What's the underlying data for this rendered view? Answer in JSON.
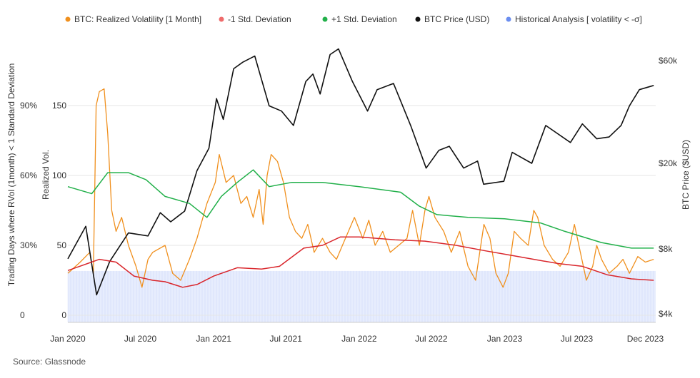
{
  "source": "Source: Glassnode",
  "chart_data": {
    "type": "line",
    "legend": [
      {
        "key": "rvol",
        "label": "BTC: Realized Volatility [1 Month]",
        "color": "#f0901e"
      },
      {
        "key": "minus_sd",
        "label": "-1 Std. Deviation",
        "color": "#ef6b6b"
      },
      {
        "key": "plus_sd",
        "label": "+1 Std. Deviation",
        "color": "#22b04a"
      },
      {
        "key": "price",
        "label": "BTC Price (USD)",
        "color": "#111111"
      },
      {
        "key": "hist",
        "label": "Historical Analysis [ volatility < -σ]",
        "color": "#6b8ef0"
      }
    ],
    "axes": {
      "left_outer": {
        "title": "Trading Days where RVol (1month) < 1 Standard Deviation",
        "ticks": [
          "0",
          "30%",
          "60%",
          "90%"
        ],
        "range": [
          0,
          1
        ]
      },
      "left_inner": {
        "title": "Realized Vol.",
        "ticks": [
          "0",
          "50",
          "100",
          "150"
        ],
        "range": [
          0,
          200
        ]
      },
      "right": {
        "title": "BTC Price ($USD)",
        "ticks": [
          "$4k",
          "$8k",
          "$20k",
          "$60k"
        ],
        "scale": "log",
        "range": [
          3500,
          75000
        ]
      },
      "x": {
        "ticks": [
          "Jan 2020",
          "Jul 2020",
          "Jan 2021",
          "Jul 2021",
          "Jan 2022",
          "Jul 2022",
          "Jan 2023",
          "Jul 2023",
          "Dec 2023"
        ],
        "range": [
          "2020-01-01",
          "2024-01-15"
        ]
      }
    },
    "series": {
      "rvol": [
        [
          "2020-01-01",
          30
        ],
        [
          "2020-02-01",
          38
        ],
        [
          "2020-02-25",
          45
        ],
        [
          "2020-03-05",
          30
        ],
        [
          "2020-03-12",
          150
        ],
        [
          "2020-03-20",
          160
        ],
        [
          "2020-04-01",
          162
        ],
        [
          "2020-04-10",
          130
        ],
        [
          "2020-04-20",
          75
        ],
        [
          "2020-05-01",
          60
        ],
        [
          "2020-05-15",
          70
        ],
        [
          "2020-06-01",
          50
        ],
        [
          "2020-06-20",
          35
        ],
        [
          "2020-07-05",
          20
        ],
        [
          "2020-07-20",
          40
        ],
        [
          "2020-08-01",
          45
        ],
        [
          "2020-09-01",
          50
        ],
        [
          "2020-09-20",
          30
        ],
        [
          "2020-10-10",
          25
        ],
        [
          "2020-11-01",
          40
        ],
        [
          "2020-11-20",
          55
        ],
        [
          "2020-12-15",
          80
        ],
        [
          "2021-01-05",
          95
        ],
        [
          "2021-01-15",
          115
        ],
        [
          "2021-02-01",
          95
        ],
        [
          "2021-02-20",
          100
        ],
        [
          "2021-03-10",
          80
        ],
        [
          "2021-03-25",
          85
        ],
        [
          "2021-04-10",
          70
        ],
        [
          "2021-04-25",
          90
        ],
        [
          "2021-05-05",
          65
        ],
        [
          "2021-05-15",
          100
        ],
        [
          "2021-05-25",
          115
        ],
        [
          "2021-06-10",
          110
        ],
        [
          "2021-06-25",
          95
        ],
        [
          "2021-07-10",
          70
        ],
        [
          "2021-07-25",
          60
        ],
        [
          "2021-08-10",
          55
        ],
        [
          "2021-08-25",
          65
        ],
        [
          "2021-09-10",
          45
        ],
        [
          "2021-10-01",
          55
        ],
        [
          "2021-10-20",
          45
        ],
        [
          "2021-11-05",
          40
        ],
        [
          "2021-11-20",
          50
        ],
        [
          "2021-12-05",
          60
        ],
        [
          "2021-12-20",
          70
        ],
        [
          "2022-01-10",
          55
        ],
        [
          "2022-01-25",
          68
        ],
        [
          "2022-02-10",
          50
        ],
        [
          "2022-03-01",
          60
        ],
        [
          "2022-03-20",
          45
        ],
        [
          "2022-04-10",
          50
        ],
        [
          "2022-05-01",
          55
        ],
        [
          "2022-05-15",
          75
        ],
        [
          "2022-06-01",
          50
        ],
        [
          "2022-06-15",
          75
        ],
        [
          "2022-06-25",
          85
        ],
        [
          "2022-07-10",
          70
        ],
        [
          "2022-08-01",
          60
        ],
        [
          "2022-08-20",
          45
        ],
        [
          "2022-09-10",
          60
        ],
        [
          "2022-10-01",
          35
        ],
        [
          "2022-10-20",
          25
        ],
        [
          "2022-11-10",
          65
        ],
        [
          "2022-11-25",
          55
        ],
        [
          "2022-12-10",
          30
        ],
        [
          "2022-12-28",
          20
        ],
        [
          "2023-01-10",
          30
        ],
        [
          "2023-01-25",
          60
        ],
        [
          "2023-02-10",
          55
        ],
        [
          "2023-03-01",
          50
        ],
        [
          "2023-03-15",
          75
        ],
        [
          "2023-03-25",
          70
        ],
        [
          "2023-04-10",
          50
        ],
        [
          "2023-05-01",
          40
        ],
        [
          "2023-05-20",
          35
        ],
        [
          "2023-06-10",
          45
        ],
        [
          "2023-06-25",
          65
        ],
        [
          "2023-07-10",
          45
        ],
        [
          "2023-07-25",
          25
        ],
        [
          "2023-08-10",
          35
        ],
        [
          "2023-08-20",
          50
        ],
        [
          "2023-09-01",
          40
        ],
        [
          "2023-09-20",
          30
        ],
        [
          "2023-10-10",
          35
        ],
        [
          "2023-10-25",
          40
        ],
        [
          "2023-11-10",
          30
        ],
        [
          "2023-12-01",
          42
        ],
        [
          "2023-12-20",
          38
        ],
        [
          "2024-01-10",
          40
        ]
      ],
      "minus_sd": [
        [
          "2020-01-01",
          32
        ],
        [
          "2020-03-20",
          40
        ],
        [
          "2020-05-01",
          38
        ],
        [
          "2020-06-15",
          28
        ],
        [
          "2020-08-01",
          25
        ],
        [
          "2020-09-01",
          24
        ],
        [
          "2020-10-15",
          20
        ],
        [
          "2020-11-20",
          22
        ],
        [
          "2021-01-01",
          28
        ],
        [
          "2021-03-01",
          34
        ],
        [
          "2021-05-01",
          33
        ],
        [
          "2021-06-15",
          35
        ],
        [
          "2021-08-15",
          48
        ],
        [
          "2021-10-01",
          50
        ],
        [
          "2021-11-15",
          56
        ],
        [
          "2022-01-01",
          56
        ],
        [
          "2022-04-01",
          54
        ],
        [
          "2022-06-15",
          53
        ],
        [
          "2022-09-01",
          50
        ],
        [
          "2022-11-15",
          46
        ],
        [
          "2023-01-15",
          43
        ],
        [
          "2023-03-15",
          40
        ],
        [
          "2023-05-15",
          37
        ],
        [
          "2023-07-15",
          35
        ],
        [
          "2023-09-15",
          29
        ],
        [
          "2023-11-15",
          26
        ],
        [
          "2024-01-10",
          25
        ]
      ],
      "plus_sd": [
        [
          "2020-01-01",
          92
        ],
        [
          "2020-03-01",
          87
        ],
        [
          "2020-04-10",
          102
        ],
        [
          "2020-06-01",
          102
        ],
        [
          "2020-07-15",
          97
        ],
        [
          "2020-09-01",
          85
        ],
        [
          "2020-11-01",
          80
        ],
        [
          "2020-12-15",
          70
        ],
        [
          "2021-01-20",
          85
        ],
        [
          "2021-03-01",
          95
        ],
        [
          "2021-04-10",
          104
        ],
        [
          "2021-05-20",
          92
        ],
        [
          "2021-07-15",
          95
        ],
        [
          "2021-10-01",
          95
        ],
        [
          "2022-01-01",
          92
        ],
        [
          "2022-04-15",
          88
        ],
        [
          "2022-06-01",
          78
        ],
        [
          "2022-07-15",
          72
        ],
        [
          "2022-10-01",
          70
        ],
        [
          "2023-01-01",
          69
        ],
        [
          "2023-04-01",
          66
        ],
        [
          "2023-06-01",
          60
        ],
        [
          "2023-09-01",
          52
        ],
        [
          "2023-11-15",
          48
        ],
        [
          "2024-01-10",
          48
        ]
      ],
      "price": [
        [
          "2020-01-01",
          7200
        ],
        [
          "2020-02-15",
          10200
        ],
        [
          "2020-03-13",
          4900
        ],
        [
          "2020-04-15",
          7000
        ],
        [
          "2020-06-01",
          9500
        ],
        [
          "2020-07-20",
          9200
        ],
        [
          "2020-08-20",
          11800
        ],
        [
          "2020-09-15",
          10700
        ],
        [
          "2020-10-20",
          12000
        ],
        [
          "2020-11-20",
          18500
        ],
        [
          "2020-12-20",
          23500
        ],
        [
          "2021-01-08",
          40000
        ],
        [
          "2021-01-25",
          32000
        ],
        [
          "2021-02-20",
          55000
        ],
        [
          "2021-03-15",
          59000
        ],
        [
          "2021-04-14",
          63000
        ],
        [
          "2021-05-20",
          37000
        ],
        [
          "2021-06-20",
          35000
        ],
        [
          "2021-07-20",
          30000
        ],
        [
          "2021-08-20",
          48000
        ],
        [
          "2021-09-07",
          52000
        ],
        [
          "2021-09-25",
          42000
        ],
        [
          "2021-10-20",
          64000
        ],
        [
          "2021-11-10",
          68000
        ],
        [
          "2021-12-15",
          48000
        ],
        [
          "2022-01-22",
          35000
        ],
        [
          "2022-02-15",
          44000
        ],
        [
          "2022-03-28",
          47000
        ],
        [
          "2022-05-10",
          30000
        ],
        [
          "2022-06-18",
          19000
        ],
        [
          "2022-07-20",
          23000
        ],
        [
          "2022-08-15",
          24000
        ],
        [
          "2022-09-20",
          19000
        ],
        [
          "2022-10-25",
          20500
        ],
        [
          "2022-11-09",
          16000
        ],
        [
          "2022-12-30",
          16500
        ],
        [
          "2023-01-20",
          22500
        ],
        [
          "2023-03-10",
          20000
        ],
        [
          "2023-04-14",
          30000
        ],
        [
          "2023-06-15",
          25000
        ],
        [
          "2023-07-15",
          30500
        ],
        [
          "2023-08-20",
          26000
        ],
        [
          "2023-09-20",
          26500
        ],
        [
          "2023-10-20",
          30000
        ],
        [
          "2023-11-10",
          37000
        ],
        [
          "2023-12-05",
          44000
        ],
        [
          "2024-01-10",
          46000
        ]
      ],
      "hist_level": 0.19
    }
  }
}
